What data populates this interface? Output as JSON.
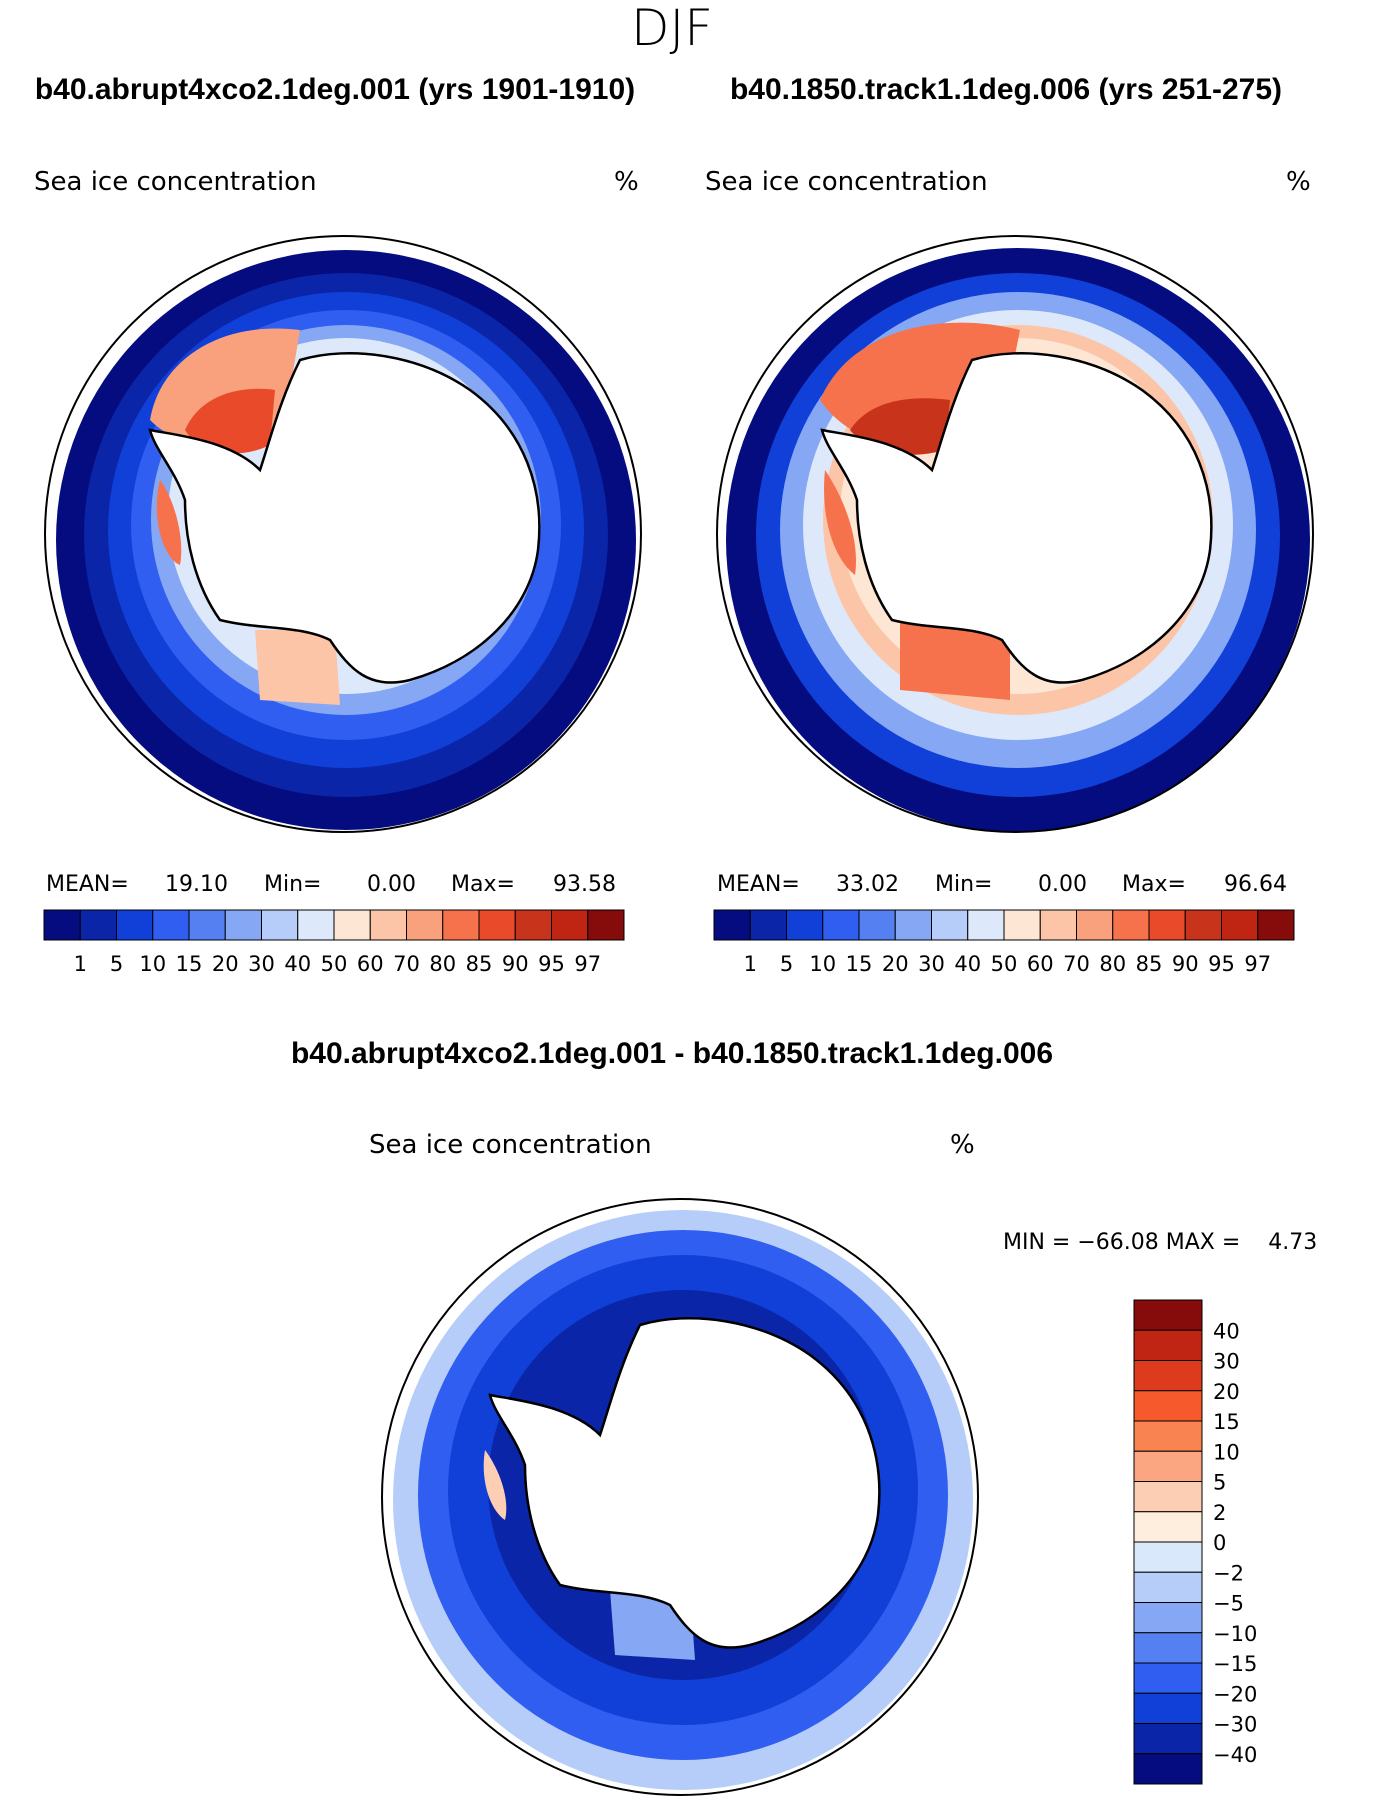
{
  "figure": {
    "season": "DJF",
    "diff_title": "b40.abrupt4xco2.1deg.001 - b40.1850.track1.1deg.006"
  },
  "panels": [
    {
      "case_title": "b40.abrupt4xco2.1deg.001 (yrs 1901-1910)",
      "variable": "Sea ice concentration",
      "units": "%",
      "stats": {
        "mean_label": "MEAN=",
        "mean": "19.10",
        "min_label": "Min=",
        "min": "0.00",
        "max_label": "Max=",
        "max": "93.58"
      }
    },
    {
      "case_title": "b40.1850.track1.1deg.006 (yrs 251-275)",
      "variable": "Sea ice concentration",
      "units": "%",
      "stats": {
        "mean_label": "MEAN=",
        "mean": "33.02",
        "min_label": "Min=",
        "min": "0.00",
        "max_label": "Max=",
        "max": "96.64"
      }
    },
    {
      "variable": "Sea ice concentration",
      "units": "%",
      "stats_text": "MIN = −66.08 MAX =    4.73"
    }
  ],
  "abs_colorbar": {
    "levels": [
      "1",
      "5",
      "10",
      "15",
      "20",
      "30",
      "40",
      "50",
      "60",
      "70",
      "80",
      "85",
      "90",
      "95",
      "97"
    ],
    "colors": [
      "#050c7f",
      "#0a25a8",
      "#1040d8",
      "#2f5ef0",
      "#5580f2",
      "#86a7f4",
      "#b5cdf8",
      "#dde9fb",
      "#fde6d4",
      "#fcc5a8",
      "#f9a07c",
      "#f6724c",
      "#e84a2a",
      "#c8331c",
      "#bf2512",
      "#860b0b"
    ]
  },
  "diff_colorbar": {
    "levels": [
      "40",
      "30",
      "20",
      "15",
      "10",
      "5",
      "2",
      "0",
      "−2",
      "−5",
      "−10",
      "−15",
      "−20",
      "−30",
      "−40"
    ],
    "colors": [
      "#860b0b",
      "#bf2512",
      "#de3a1c",
      "#f6592c",
      "#f98452",
      "#fba581",
      "#fccfb4",
      "#fdeede",
      "#d9e8fb",
      "#b5cdf8",
      "#86a7f4",
      "#5580f2",
      "#2f5ef0",
      "#1040d8",
      "#0a25a8",
      "#050c7f"
    ]
  },
  "maps": [
    {
      "rings": [
        {
          "level": "1",
          "color": "#050c7f"
        },
        {
          "level": "5",
          "color": "#0a25a8"
        },
        {
          "level": "10",
          "color": "#1040d8"
        },
        {
          "level": "20",
          "color": "#2f5ef0"
        },
        {
          "level": "30",
          "color": "#86a7f4"
        },
        {
          "level": "50",
          "color": "#dde9fb"
        }
      ],
      "patches": [
        {
          "region": "Weddell Sea",
          "color": "#f9a07c"
        },
        {
          "region": "Weddell Sea core",
          "color": "#e84a2a"
        },
        {
          "region": "Bellingshausen Sea",
          "color": "#f6724c"
        },
        {
          "region": "Ross Sea",
          "color": "#fcc5a8"
        }
      ]
    },
    {
      "rings": [
        {
          "level": "1",
          "color": "#050c7f"
        },
        {
          "level": "5",
          "color": "#1040d8"
        },
        {
          "level": "20",
          "color": "#86a7f4"
        },
        {
          "level": "40",
          "color": "#dde9fb"
        },
        {
          "level": "60",
          "color": "#fcc5a8"
        },
        {
          "level": "80",
          "color": "#fde6d4"
        }
      ],
      "patches": [
        {
          "region": "Weddell Sea",
          "color": "#f6724c"
        },
        {
          "region": "Weddell Sea core",
          "color": "#c8331c"
        },
        {
          "region": "Ross Sea",
          "color": "#f6724c"
        },
        {
          "region": "Bellingshausen Sea",
          "color": "#f6724c"
        }
      ]
    },
    {
      "rings": [
        {
          "level": "-2",
          "color": "#b5cdf8"
        },
        {
          "level": "-15",
          "color": "#2f5ef0"
        },
        {
          "level": "-20",
          "color": "#1040d8"
        },
        {
          "level": "-30",
          "color": "#0a25a8"
        }
      ],
      "patches": [
        {
          "region": "Ross Sea",
          "color": "#86a7f4"
        },
        {
          "region": "Antarctic Peninsula",
          "color": "#fccfb4"
        }
      ]
    }
  ]
}
